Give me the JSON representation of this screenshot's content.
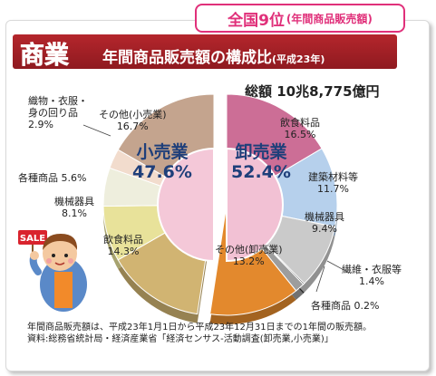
{
  "badge": {
    "main": "全国9位",
    "sub": "(年間商品販売額)"
  },
  "title": {
    "big": "商業",
    "sub": "年間商品販売額の構成比",
    "year": "(平成23年)"
  },
  "total": "総額 10兆8,775億円",
  "chart_data": {
    "type": "pie",
    "groups": [
      {
        "name": "小売業",
        "share": "47.6%",
        "value": 47.6
      },
      {
        "name": "卸売業",
        "share": "52.4%",
        "value": 52.4
      }
    ],
    "slices": [
      {
        "group": "卸売業",
        "name": "飲食料品",
        "value": 16.5,
        "label": "16.5%",
        "color": "#cc6e96"
      },
      {
        "group": "卸売業",
        "name": "建築材料等",
        "value": 11.7,
        "label": "11.7%",
        "color": "#b6d0ec"
      },
      {
        "group": "卸売業",
        "name": "機械器具",
        "value": 9.4,
        "label": "9.4%",
        "color": "#cacaca"
      },
      {
        "group": "卸売業",
        "name": "各種商品",
        "value": 0.2,
        "label": "0.2%",
        "color": "#333333"
      },
      {
        "group": "卸売業",
        "name": "繊維・衣服等",
        "value": 1.4,
        "label": "1.4%",
        "color": "#9d9d9d"
      },
      {
        "group": "卸売業",
        "name": "その他(卸売業)",
        "value": 13.2,
        "label": "13.2%",
        "color": "#e3892d"
      },
      {
        "group": "小売業",
        "name": "飲食料品",
        "value": 14.3,
        "label": "14.3%",
        "color": "#d1b472"
      },
      {
        "group": "小売業",
        "name": "機械器具",
        "value": 8.1,
        "label": "8.1%",
        "color": "#e8e29a"
      },
      {
        "group": "小売業",
        "name": "各種商品",
        "value": 5.6,
        "label": "5.6%",
        "color": "#eeeedd"
      },
      {
        "group": "小売業",
        "name": "織物・衣服・身の回り品",
        "value": 2.9,
        "label": "2.9%",
        "color": "#f2dccd"
      },
      {
        "group": "小売業",
        "name": "その他(小売業)",
        "value": 16.7,
        "label": "16.7%",
        "color": "#c4a48e"
      }
    ]
  },
  "labels": {
    "w_food": {
      "name": "飲食料品",
      "pct": "16.5%"
    },
    "w_build": {
      "name": "建築材料等",
      "pct": "11.7%"
    },
    "w_mach": {
      "name": "機械器具",
      "pct": "9.4%"
    },
    "w_textile": {
      "name": "繊維・衣服等",
      "pct": "1.4%"
    },
    "w_general": {
      "text": "各種商品 0.2%"
    },
    "w_other": {
      "name": "その他(卸売業)",
      "pct": "13.2%"
    },
    "r_food": {
      "name": "飲食料品",
      "pct": "14.3%"
    },
    "r_mach": {
      "name": "機械器具",
      "pct": "8.1%"
    },
    "r_general": {
      "text": "各種商品 5.6%"
    },
    "r_textile": {
      "line1": "織物・衣服・",
      "line2": "身の回り品",
      "pct": "2.9%"
    },
    "r_other": {
      "name": "その他(小売業)",
      "pct": "16.7%"
    }
  },
  "sale_sign": "SALE",
  "notes": {
    "line1": "年間商品販売額は、平成23年1月1日から平成23年12月31日までの1年間の販売額。",
    "line2": "資料:総務省統計局・経済産業省「経済センサス-活動調査(卸売業,小売業)」"
  }
}
